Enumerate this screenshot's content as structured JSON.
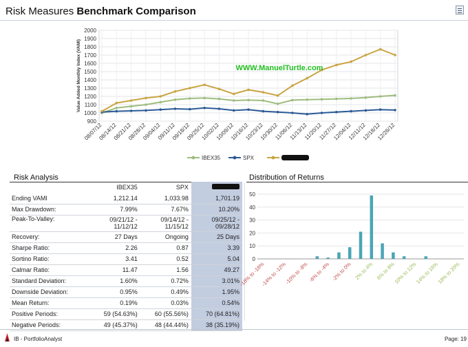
{
  "header": {
    "title_light": "Risk Measures",
    "title_bold": "Benchmark Comparison"
  },
  "chart_data": [
    {
      "type": "line",
      "ylabel": "Value Added Monthly Index (VAMI)",
      "ylim": [
        900,
        2000
      ],
      "yticks": [
        900,
        1000,
        1100,
        1200,
        1300,
        1400,
        1500,
        1600,
        1700,
        1800,
        1900,
        2000
      ],
      "x": [
        "08/07/12",
        "08/14/12",
        "08/21/12",
        "08/28/12",
        "09/04/12",
        "09/11/12",
        "09/18/12",
        "09/25/12",
        "10/02/12",
        "10/09/12",
        "10/16/12",
        "10/23/12",
        "10/30/12",
        "11/06/12",
        "11/13/12",
        "11/20/12",
        "11/27/12",
        "12/04/12",
        "12/11/12",
        "12/18/12",
        "12/26/12"
      ],
      "watermark": "WWW.ManuelTurtle.com",
      "grid": true,
      "legend": "bottom",
      "series": [
        {
          "name": "IBEX35",
          "color": "#9fbc7e",
          "values": [
            1000,
            1060,
            1080,
            1100,
            1130,
            1160,
            1175,
            1180,
            1170,
            1150,
            1155,
            1150,
            1110,
            1155,
            1160,
            1165,
            1170,
            1175,
            1185,
            1200,
            1212
          ]
        },
        {
          "name": "SPX",
          "color": "#2c5a96",
          "values": [
            1010,
            1020,
            1025,
            1030,
            1040,
            1050,
            1045,
            1060,
            1050,
            1030,
            1040,
            1020,
            1010,
            1000,
            985,
            1000,
            1010,
            1020,
            1030,
            1040,
            1034
          ]
        },
        {
          "name": "",
          "color": "#c9a441",
          "values": [
            1020,
            1120,
            1150,
            1180,
            1200,
            1260,
            1300,
            1340,
            1290,
            1230,
            1280,
            1250,
            1210,
            1330,
            1420,
            1520,
            1580,
            1620,
            1700,
            1770,
            1701
          ]
        }
      ]
    },
    {
      "type": "bar",
      "title": "Distribution of Returns",
      "ylim": [
        0,
        50
      ],
      "yticks": [
        0,
        10,
        20,
        30,
        40,
        50
      ],
      "categories": [
        "-18% to -16%",
        "",
        "-14% to -12%",
        "",
        "-10% to -8%",
        "",
        "-6% to -4%",
        "",
        "-2% to 0%",
        "",
        "2% to 4%",
        "",
        "6% to 8%",
        "",
        "10% to 12%",
        "",
        "14% to 16%",
        "",
        "18% to 20%"
      ],
      "values": [
        0,
        0,
        0,
        0,
        0,
        2,
        1,
        5,
        9,
        21,
        49,
        12,
        5,
        2,
        0,
        2,
        0,
        0,
        0
      ],
      "bar_color": "#4aa5b5",
      "negative_label_color": "#c0504d",
      "positive_label_color": "#9bbb59"
    }
  ],
  "risk": {
    "heading": "Risk Analysis",
    "columns": [
      "IBEX35",
      "SPX"
    ],
    "rows": [
      {
        "label": "Ending VAMI",
        "a": "1,212.14",
        "b": "1,033.98",
        "c": "1,701.19"
      },
      {
        "label": "Max Drawdown:",
        "a": "7.99%",
        "b": "7.67%",
        "c": "10.20%"
      },
      {
        "label": "Peak-To-Valley:",
        "a1": "09/21/12 -",
        "a2": "11/12/12",
        "b1": "09/14/12 -",
        "b2": "11/15/12",
        "c1": "09/25/12 -",
        "c2": "09/28/12"
      },
      {
        "label": "Recovery:",
        "a": "27 Days",
        "b": "Ongoing",
        "c": "25 Days"
      },
      {
        "label": "Sharpe Ratio:",
        "a": "2.26",
        "b": "0.87",
        "c": "3.39"
      },
      {
        "label": "Sortino Ratio:",
        "a": "3.41",
        "b": "0.52",
        "c": "5.04"
      },
      {
        "label": "Calmar Ratio:",
        "a": "11.47",
        "b": "1.56",
        "c": "49.27"
      },
      {
        "label": "Standard Deviation:",
        "a": "1.60%",
        "b": "0.72%",
        "c": "3.01%"
      },
      {
        "label": "Downside Deviation:",
        "a": "0.95%",
        "b": "0.49%",
        "c": "1.95%"
      },
      {
        "label": "Mean Return:",
        "a": "0.19%",
        "b": "0.03%",
        "c": "0.54%"
      },
      {
        "label": "Positive Periods:",
        "a": "59 (54.63%)",
        "b": "60 (55.56%)",
        "c": "70 (64.81%)"
      },
      {
        "label": "Negative Periods:",
        "a": "49 (45.37%)",
        "b": "48 (44.44%)",
        "c": "38 (35.19%)"
      }
    ]
  },
  "distribution": {
    "heading": "Distribution of Returns"
  },
  "footer": {
    "app": "IB - PortfolioAnalyst",
    "page": "Page: 19"
  }
}
